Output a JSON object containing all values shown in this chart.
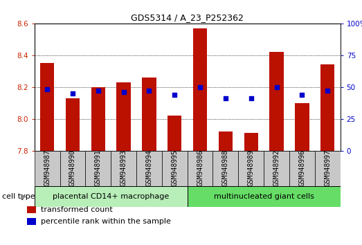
{
  "title": "GDS5314 / A_23_P252362",
  "samples": [
    "GSM948987",
    "GSM948990",
    "GSM948991",
    "GSM948993",
    "GSM948994",
    "GSM948995",
    "GSM948986",
    "GSM948988",
    "GSM948989",
    "GSM948992",
    "GSM948996",
    "GSM948997"
  ],
  "transformed_count": [
    8.35,
    8.13,
    8.2,
    8.23,
    8.26,
    8.02,
    8.57,
    7.92,
    7.91,
    8.42,
    8.1,
    8.34
  ],
  "percentile_rank": [
    48,
    45,
    47,
    46,
    47,
    44,
    50,
    41,
    41,
    50,
    44,
    47
  ],
  "ylim_left": [
    7.8,
    8.6
  ],
  "ylim_right": [
    0,
    100
  ],
  "yticks_left": [
    7.8,
    8.0,
    8.2,
    8.4,
    8.6
  ],
  "yticks_right": [
    0,
    25,
    50,
    75,
    100
  ],
  "ytick_labels_right": [
    "0",
    "25",
    "50",
    "75",
    "100%"
  ],
  "groups": [
    {
      "label": "placental CD14+ macrophage",
      "indices": [
        0,
        1,
        2,
        3,
        4,
        5
      ],
      "color": "#b8eeb8"
    },
    {
      "label": "multinucleated giant cells",
      "indices": [
        6,
        7,
        8,
        9,
        10,
        11
      ],
      "color": "#66dd66"
    }
  ],
  "bar_color": "#bb1100",
  "dot_color": "#0000cc",
  "cell_type_label": "cell type",
  "legend_bar_label": "transformed count",
  "legend_dot_label": "percentile rank within the sample",
  "bar_width": 0.55,
  "sample_box_color": "#c8c8c8",
  "title_fontsize": 9,
  "axis_fontsize": 7.5,
  "label_fontsize": 7,
  "legend_fontsize": 8
}
